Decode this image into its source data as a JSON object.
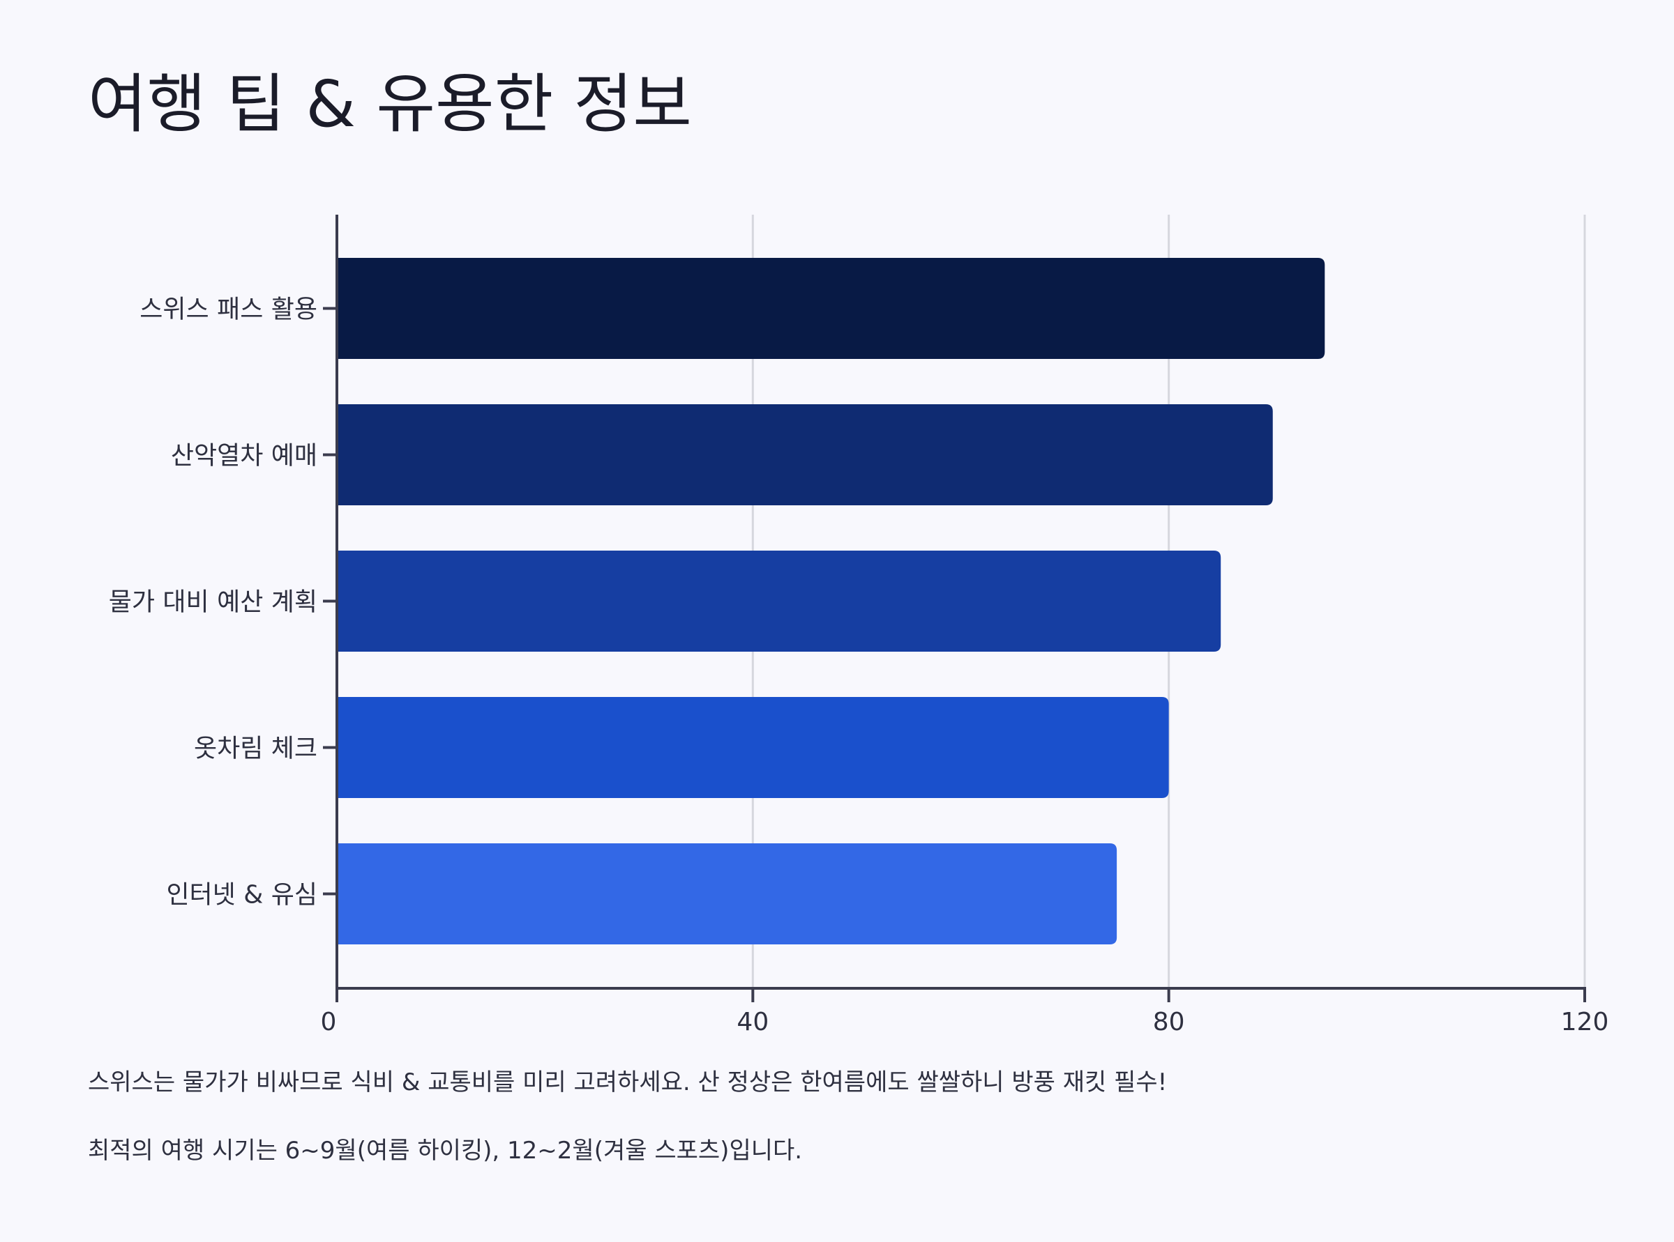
{
  "chart_data": {
    "type": "bar",
    "orientation": "horizontal",
    "title": "여행 팁 & 유용한 정보",
    "categories": [
      "스위스 패스 활용",
      "산악열차 예매",
      "물가 대비 예산 계획",
      "옷차림 체크",
      "인터넷 & 유심"
    ],
    "values": [
      95,
      90,
      85,
      80,
      75
    ],
    "colors": [
      "#081a45",
      "#0f2b72",
      "#163ea2",
      "#1a50cc",
      "#3368e6"
    ],
    "xlim": [
      0,
      120
    ],
    "x_ticks": [
      "0",
      "40",
      "80",
      "120"
    ],
    "x_tick_values": [
      0,
      40,
      80,
      120
    ],
    "grid": "vertical",
    "xlabel": "",
    "ylabel": ""
  },
  "notes": [
    "스위스는 물가가 비싸므로 식비 & 교통비를 미리 고려하세요. 산 정상은 한여름에도 쌀쌀하니 방풍 재킷 필수!",
    "최적의 여행 시기는 6~9월(여름 하이킹), 12~2월(겨울 스포츠)입니다."
  ]
}
